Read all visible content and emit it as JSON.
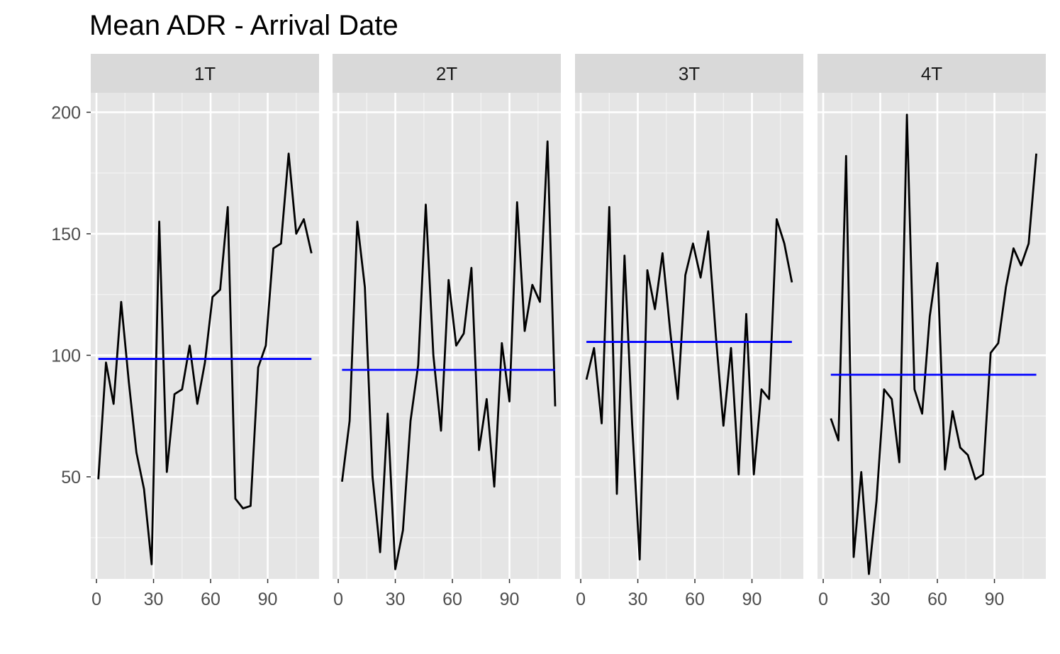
{
  "chart_data": {
    "type": "line",
    "title": "Mean ADR  - Arrival Date",
    "xlabel": "",
    "ylabel": "",
    "xlim": [
      -3,
      117
    ],
    "ylim": [
      8,
      208
    ],
    "x_ticks": [
      0,
      30,
      60,
      90
    ],
    "y_ticks": [
      50,
      100,
      150,
      200
    ],
    "grid": true,
    "legend": "none",
    "colors": {
      "panel_bg": "#e5e5e5",
      "strip_bg": "#d9d9d9",
      "grid": "#ffffff",
      "series": "#000000",
      "mean_line": "#0000ff"
    },
    "facets": [
      {
        "label": "1T",
        "mean": 98.5,
        "mean_x": [
          1,
          113
        ],
        "x": [
          1,
          5,
          9,
          13,
          17,
          21,
          25,
          29,
          33,
          37,
          41,
          45,
          49,
          53,
          57,
          61,
          65,
          69,
          73,
          77,
          81,
          85,
          89,
          93,
          97,
          101,
          105,
          109,
          113
        ],
        "y": [
          49,
          97,
          80,
          122,
          89,
          60,
          45,
          14,
          155,
          52,
          84,
          86,
          104,
          80,
          97,
          124,
          127,
          161,
          41,
          37,
          38,
          95,
          104,
          144,
          146,
          183,
          150,
          156,
          142
        ]
      },
      {
        "label": "2T",
        "mean": 94,
        "mean_x": [
          2,
          114
        ],
        "x": [
          2,
          6,
          10,
          14,
          18,
          22,
          26,
          30,
          34,
          38,
          42,
          46,
          50,
          54,
          58,
          62,
          66,
          70,
          74,
          78,
          82,
          86,
          90,
          94,
          98,
          102,
          106,
          110,
          114
        ],
        "y": [
          48,
          73,
          155,
          128,
          50,
          19,
          76,
          12,
          28,
          73,
          96,
          162,
          100,
          69,
          131,
          104,
          109,
          136,
          61,
          82,
          46,
          105,
          81,
          163,
          110,
          129,
          122,
          188,
          79
        ]
      },
      {
        "label": "3T",
        "mean": 105.5,
        "mean_x": [
          3,
          111
        ],
        "x": [
          3,
          7,
          11,
          15,
          19,
          23,
          27,
          31,
          35,
          39,
          43,
          47,
          51,
          55,
          59,
          63,
          67,
          71,
          75,
          79,
          83,
          87,
          91,
          95,
          99,
          103,
          107,
          111
        ],
        "y": [
          90,
          103,
          72,
          161,
          43,
          141,
          72,
          16,
          135,
          119,
          142,
          110,
          82,
          133,
          146,
          132,
          151,
          108,
          71,
          103,
          51,
          117,
          51,
          86,
          82,
          156,
          146,
          130
        ]
      },
      {
        "label": "4T",
        "mean": 92,
        "mean_x": [
          4,
          112
        ],
        "x": [
          4,
          8,
          12,
          16,
          20,
          24,
          28,
          32,
          36,
          40,
          44,
          48,
          52,
          56,
          60,
          64,
          68,
          72,
          76,
          80,
          84,
          88,
          92,
          96,
          100,
          104,
          108,
          112
        ],
        "y": [
          74,
          65,
          182,
          17,
          52,
          10,
          40,
          86,
          82,
          56,
          199,
          86,
          76,
          116,
          138,
          53,
          77,
          62,
          59,
          49,
          51,
          101,
          105,
          128,
          144,
          137,
          146,
          183
        ]
      }
    ]
  }
}
